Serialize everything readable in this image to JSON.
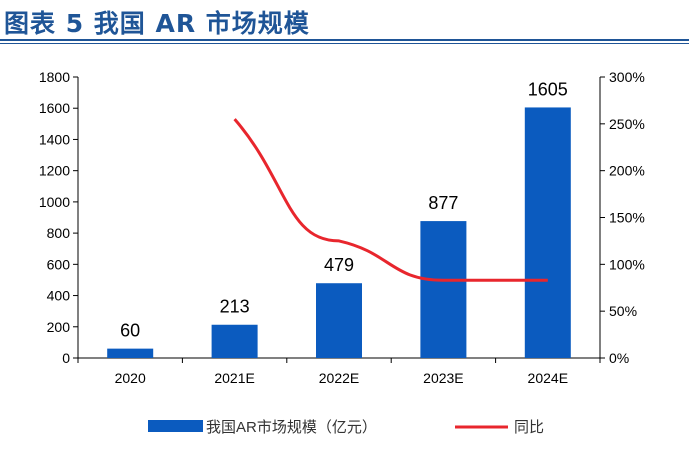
{
  "title": "图表 5   我国 AR 市场规模",
  "chart_data": {
    "type": "bar+line",
    "categories": [
      "2020",
      "2021E",
      "2022E",
      "2023E",
      "2024E"
    ],
    "series": [
      {
        "name": "我国AR市场规模（亿元）",
        "type": "bar",
        "axis": "left",
        "color": "#0b5bbf",
        "values": [
          60,
          213,
          479,
          877,
          1605
        ],
        "data_labels": [
          "60",
          "213",
          "479",
          "877",
          "1605"
        ]
      },
      {
        "name": "同比",
        "type": "line",
        "axis": "right",
        "color": "#e8262d",
        "values": [
          null,
          255,
          125,
          83,
          83
        ]
      }
    ],
    "ylim": [
      0,
      1800
    ],
    "yticks": [
      "0",
      "200",
      "400",
      "600",
      "800",
      "1000",
      "1200",
      "1400",
      "1600",
      "1800"
    ],
    "y2lim": [
      0,
      300
    ],
    "y2ticks": [
      "0%",
      "50%",
      "100%",
      "150%",
      "200%",
      "250%",
      "300%"
    ],
    "grid": false,
    "legend": "bottom"
  }
}
